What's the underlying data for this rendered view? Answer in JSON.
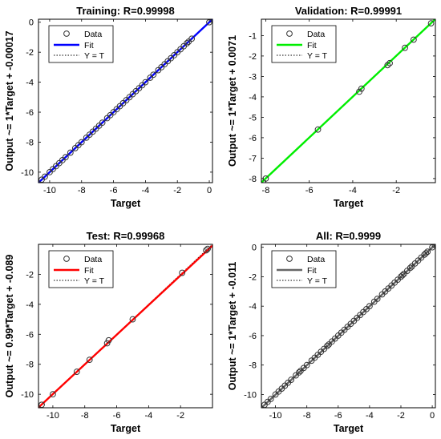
{
  "legend_labels": {
    "data": "Data",
    "fit": "Fit",
    "yt": "Y = T"
  },
  "chart_data": [
    {
      "type": "scatter",
      "title": "Training: R=0.99998",
      "xlabel": "Target",
      "ylabel": "Output ~= 1*Target + -0.00017",
      "fit_color": "#0000ff",
      "xlim": [
        -10.7,
        0.2
      ],
      "ylim": [
        -10.7,
        0.2
      ],
      "xticks": [
        -10,
        -8,
        -6,
        -4,
        -2,
        0
      ],
      "yticks": [
        0,
        -2,
        -4,
        -6,
        -8,
        -10
      ],
      "fit": {
        "slope": 1,
        "intercept": -0.00017
      },
      "legend": [
        "Data",
        "Fit",
        "Y = T"
      ],
      "legend_position": "top-left",
      "x": [
        -10.5,
        -10.3,
        -10.0,
        -9.8,
        -9.6,
        -9.4,
        -9.2,
        -9.0,
        -8.7,
        -8.4,
        -8.2,
        -8.0,
        -7.7,
        -7.5,
        -7.3,
        -7.1,
        -6.9,
        -6.7,
        -6.4,
        -6.2,
        -6.0,
        -5.8,
        -5.6,
        -5.4,
        -5.2,
        -5.0,
        -4.8,
        -4.6,
        -4.4,
        -4.2,
        -4.0,
        -3.7,
        -3.5,
        -3.2,
        -3.0,
        -2.8,
        -2.6,
        -2.4,
        -2.2,
        -2.0,
        -1.8,
        -1.6,
        -1.4,
        -1.3,
        -1.1,
        0.0
      ],
      "y": [
        -10.5,
        -10.3,
        -10.0,
        -9.8,
        -9.6,
        -9.4,
        -9.2,
        -9.0,
        -8.7,
        -8.4,
        -8.2,
        -8.0,
        -7.7,
        -7.5,
        -7.3,
        -7.1,
        -6.9,
        -6.7,
        -6.4,
        -6.2,
        -6.0,
        -5.8,
        -5.6,
        -5.4,
        -5.2,
        -5.0,
        -4.8,
        -4.6,
        -4.4,
        -4.2,
        -4.0,
        -3.7,
        -3.5,
        -3.2,
        -3.0,
        -2.8,
        -2.6,
        -2.4,
        -2.2,
        -2.0,
        -1.8,
        -1.6,
        -1.4,
        -1.3,
        -1.1,
        0.0
      ]
    },
    {
      "type": "scatter",
      "title": "Validation: R=0.99991",
      "xlabel": "Target",
      "ylabel": "Output ~= 1*Target + 0.0071",
      "fit_color": "#00ee00",
      "xlim": [
        -8.2,
        -0.2
      ],
      "ylim": [
        -8.2,
        -0.2
      ],
      "xticks": [
        -8,
        -6,
        -4,
        -2
      ],
      "yticks": [
        -1,
        -2,
        -3,
        -4,
        -5,
        -6,
        -7,
        -8
      ],
      "fit": {
        "slope": 1,
        "intercept": 0.0071
      },
      "legend": [
        "Data",
        "Fit",
        "Y = T"
      ],
      "legend_position": "top-left",
      "x": [
        -8.0,
        -5.6,
        -3.7,
        -3.6,
        -2.4,
        -2.3,
        -1.6,
        -1.2,
        -0.4
      ],
      "y": [
        -8.0,
        -5.6,
        -3.75,
        -3.6,
        -2.45,
        -2.35,
        -1.6,
        -1.2,
        -0.4
      ]
    },
    {
      "type": "scatter",
      "title": "Test: R=0.99968",
      "xlabel": "Target",
      "ylabel": "Output ~= 0.99*Target + -0.089",
      "fit_color": "#ff0000",
      "xlim": [
        -10.9,
        0.0
      ],
      "ylim": [
        -10.9,
        0.0
      ],
      "xticks": [
        -10,
        -8,
        -6,
        -4,
        -2
      ],
      "yticks": [
        -2,
        -4,
        -6,
        -8,
        -10
      ],
      "fit": {
        "slope": 0.99,
        "intercept": -0.089
      },
      "legend": [
        "Data",
        "Fit",
        "Y = T"
      ],
      "legend_position": "top-left",
      "x": [
        -10.7,
        -10.0,
        -8.5,
        -7.7,
        -6.6,
        -6.5,
        -5.0,
        -1.9,
        -0.4,
        -0.3
      ],
      "y": [
        -10.7,
        -10.0,
        -8.5,
        -7.7,
        -6.6,
        -6.4,
        -5.0,
        -1.9,
        -0.4,
        -0.3
      ]
    },
    {
      "type": "scatter",
      "title": "All: R=0.9999",
      "xlabel": "Target",
      "ylabel": "Output ~= 1*Target + -0.011",
      "fit_color": "#666666",
      "xlim": [
        -10.9,
        0.2
      ],
      "ylim": [
        -10.9,
        0.2
      ],
      "xticks": [
        -10,
        -8,
        -6,
        -4,
        -2,
        0
      ],
      "yticks": [
        0,
        -2,
        -4,
        -6,
        -8,
        -10
      ],
      "fit": {
        "slope": 1,
        "intercept": -0.011
      },
      "legend": [
        "Data",
        "Fit",
        "Y = T"
      ],
      "legend_position": "top-left",
      "x": [
        -10.7,
        -10.5,
        -10.3,
        -10.0,
        -9.8,
        -9.6,
        -9.4,
        -9.2,
        -9.0,
        -8.7,
        -8.5,
        -8.4,
        -8.2,
        -8.0,
        -7.7,
        -7.5,
        -7.3,
        -7.1,
        -6.9,
        -6.7,
        -6.6,
        -6.4,
        -6.2,
        -6.0,
        -5.8,
        -5.6,
        -5.4,
        -5.2,
        -5.0,
        -4.8,
        -4.6,
        -4.4,
        -4.2,
        -4.0,
        -3.7,
        -3.5,
        -3.2,
        -3.0,
        -2.8,
        -2.6,
        -2.4,
        -2.2,
        -2.0,
        -1.9,
        -1.8,
        -1.6,
        -1.4,
        -1.3,
        -1.1,
        -0.9,
        -0.7,
        -0.5,
        -0.4,
        -0.3,
        0.0
      ],
      "y": [
        -10.7,
        -10.5,
        -10.3,
        -10.0,
        -9.8,
        -9.6,
        -9.4,
        -9.2,
        -9.0,
        -8.7,
        -8.5,
        -8.4,
        -8.2,
        -8.0,
        -7.7,
        -7.5,
        -7.3,
        -7.1,
        -6.9,
        -6.7,
        -6.6,
        -6.4,
        -6.2,
        -6.0,
        -5.8,
        -5.6,
        -5.4,
        -5.2,
        -5.0,
        -4.8,
        -4.6,
        -4.4,
        -4.2,
        -4.0,
        -3.7,
        -3.5,
        -3.2,
        -3.0,
        -2.8,
        -2.6,
        -2.4,
        -2.2,
        -2.0,
        -1.9,
        -1.8,
        -1.6,
        -1.4,
        -1.3,
        -1.1,
        -0.9,
        -0.7,
        -0.5,
        -0.4,
        -0.3,
        0.0
      ]
    }
  ]
}
